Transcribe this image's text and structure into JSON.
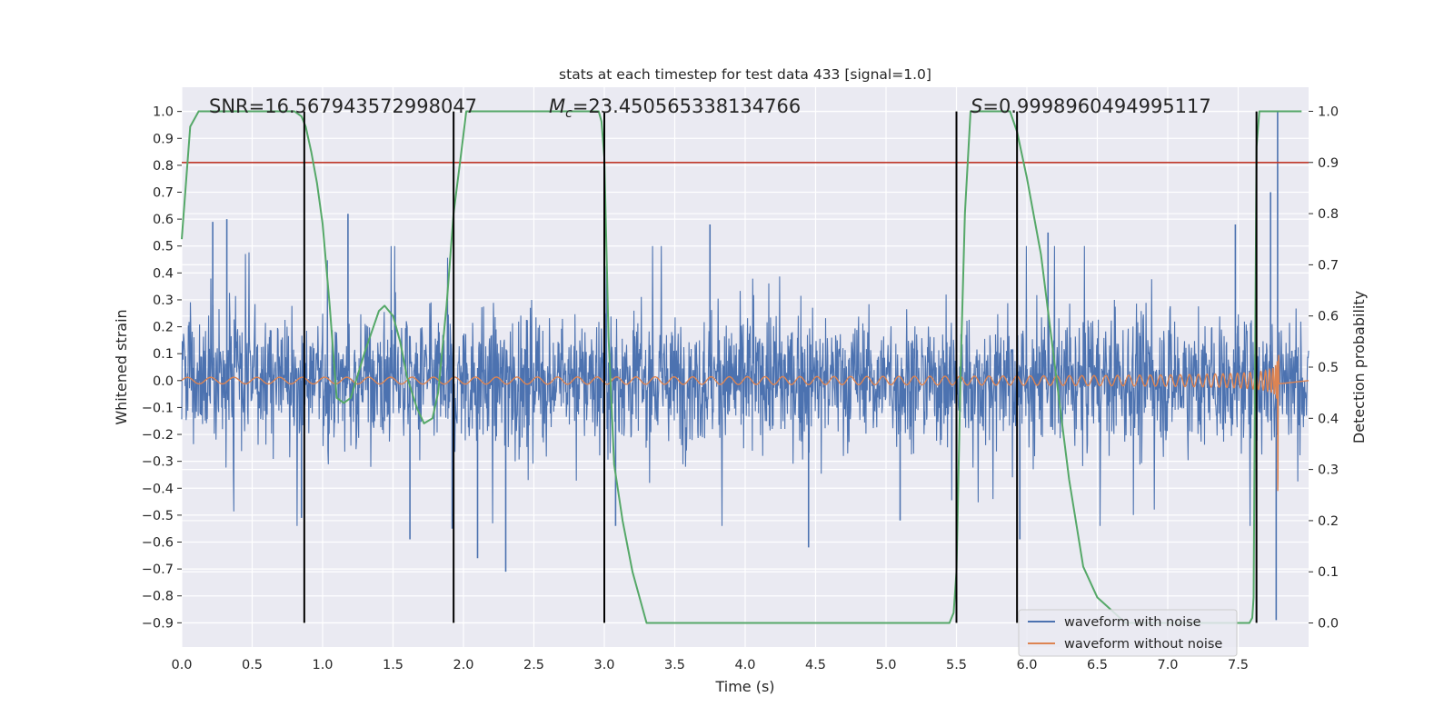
{
  "chart_data": {
    "type": "line",
    "title": "stats at each timestep for test data 433 [signal=1.0]",
    "xlabel": "Time (s)",
    "ylabel": "Whitened strain",
    "y2label": "Detection probability",
    "xlim": [
      0.0,
      8.0
    ],
    "ylim": [
      -0.99,
      1.09
    ],
    "y2lim": [
      -0.047,
      1.047
    ],
    "xticks": [
      "0.0",
      "0.5",
      "1.0",
      "1.5",
      "2.0",
      "2.5",
      "3.0",
      "3.5",
      "4.0",
      "4.5",
      "5.0",
      "5.5",
      "6.0",
      "6.5",
      "7.0",
      "7.5"
    ],
    "xtick_values": [
      0.0,
      0.5,
      1.0,
      1.5,
      2.0,
      2.5,
      3.0,
      3.5,
      4.0,
      4.5,
      5.0,
      5.5,
      6.0,
      6.5,
      7.0,
      7.5
    ],
    "yticks": [
      "1.0",
      "0.9",
      "0.8",
      "0.7",
      "0.6",
      "0.5",
      "0.4",
      "0.3",
      "0.2",
      "0.1",
      "0.0",
      "−0.1",
      "−0.2",
      "−0.3",
      "−0.4",
      "−0.5",
      "−0.6",
      "−0.7",
      "−0.8",
      "−0.9"
    ],
    "ytick_values": [
      1.0,
      0.9,
      0.8,
      0.7,
      0.6,
      0.5,
      0.4,
      0.3,
      0.2,
      0.1,
      0.0,
      -0.1,
      -0.2,
      -0.3,
      -0.4,
      -0.5,
      -0.6,
      -0.7,
      -0.8,
      -0.9
    ],
    "y2ticks": [
      "1.0",
      "0.9",
      "0.8",
      "0.7",
      "0.6",
      "0.5",
      "0.4",
      "0.3",
      "0.2",
      "0.1",
      "0.0"
    ],
    "y2tick_values": [
      1.0,
      0.9,
      0.8,
      0.7,
      0.6,
      0.5,
      0.4,
      0.3,
      0.2,
      0.1,
      0.0
    ],
    "annotations": {
      "snr": "SNR=16.567943572998047",
      "mc_symbol": "M",
      "mc_sub": "c",
      "mc_value": "=23.450565338134766",
      "s_symbol": "S",
      "s_value": "=0.9998960494995117"
    },
    "threshold": {
      "axis": "right",
      "value": 0.9,
      "color": "#c0392b"
    },
    "vlines": {
      "x": [
        0.87,
        1.93,
        3.0,
        5.5,
        5.93,
        7.63
      ],
      "ymin": -0.9,
      "ymax": 1.0,
      "color": "#000000"
    },
    "series": [
      {
        "name": "waveform with noise",
        "color": "#4c72b0",
        "kind": "noise",
        "typical_std": 0.12,
        "peak_range": [
          -0.9,
          1.0
        ],
        "extremes": [
          {
            "x": 0.22,
            "y": 0.59
          },
          {
            "x": 0.32,
            "y": 0.6
          },
          {
            "x": 0.85,
            "y": -0.51
          },
          {
            "x": 1.18,
            "y": 0.62
          },
          {
            "x": 1.62,
            "y": -0.59
          },
          {
            "x": 1.92,
            "y": -0.55
          },
          {
            "x": 2.1,
            "y": -0.66
          },
          {
            "x": 2.3,
            "y": -0.71
          },
          {
            "x": 3.08,
            "y": -0.54
          },
          {
            "x": 3.75,
            "y": 0.58
          },
          {
            "x": 4.45,
            "y": -0.62
          },
          {
            "x": 5.1,
            "y": -0.52
          },
          {
            "x": 5.95,
            "y": -0.59
          },
          {
            "x": 6.15,
            "y": 0.55
          },
          {
            "x": 7.48,
            "y": 0.58
          },
          {
            "x": 7.73,
            "y": 0.7
          },
          {
            "x": 7.77,
            "y": -0.89
          },
          {
            "x": 7.78,
            "y": 1.0
          }
        ]
      },
      {
        "name": "waveform without noise",
        "color": "#dd8452",
        "kind": "chirp",
        "merger_time": 7.78,
        "amplitude_start": 0.003,
        "amplitude_peak": 0.78,
        "frequency_start_hz": 6
      },
      {
        "name": "detection probability",
        "color": "#55a868",
        "axis": "right",
        "x": [
          0.0,
          0.06,
          0.12,
          0.2,
          0.3,
          0.45,
          0.6,
          0.7,
          0.8,
          0.85,
          0.88,
          0.92,
          0.96,
          1.0,
          1.05,
          1.1,
          1.15,
          1.2,
          1.3,
          1.4,
          1.44,
          1.5,
          1.55,
          1.6,
          1.67,
          1.72,
          1.78,
          1.82,
          1.88,
          1.93,
          1.98,
          2.02,
          2.08,
          2.15,
          2.3,
          2.5,
          2.7,
          2.9,
          2.96,
          2.98,
          3.0,
          3.03,
          3.07,
          3.13,
          3.2,
          3.3,
          3.5,
          4.0,
          4.5,
          5.0,
          5.2,
          5.35,
          5.45,
          5.48,
          5.5,
          5.53,
          5.56,
          5.6,
          5.7,
          5.8,
          5.88,
          5.93,
          6.0,
          6.1,
          6.2,
          6.3,
          6.4,
          6.5,
          6.7,
          6.9,
          7.1,
          7.3,
          7.5,
          7.58,
          7.6,
          7.61,
          7.62,
          7.63,
          7.65,
          7.68,
          7.72,
          7.8,
          7.95
        ],
        "y": [
          0.75,
          0.97,
          1.0,
          1.0,
          1.0,
          1.0,
          1.0,
          1.0,
          1.0,
          0.99,
          0.97,
          0.92,
          0.86,
          0.78,
          0.62,
          0.44,
          0.43,
          0.44,
          0.53,
          0.61,
          0.62,
          0.6,
          0.55,
          0.48,
          0.42,
          0.39,
          0.4,
          0.45,
          0.62,
          0.8,
          0.91,
          1.0,
          1.0,
          1.0,
          1.0,
          1.0,
          1.0,
          1.0,
          1.0,
          0.98,
          0.91,
          0.56,
          0.31,
          0.2,
          0.1,
          0.0,
          0.0,
          0.0,
          0.0,
          0.0,
          0.0,
          0.0,
          0.0,
          0.02,
          0.1,
          0.5,
          0.8,
          1.0,
          1.0,
          1.0,
          1.0,
          0.96,
          0.87,
          0.72,
          0.5,
          0.28,
          0.11,
          0.05,
          0.0,
          0.0,
          0.0,
          0.0,
          0.0,
          0.0,
          0.01,
          0.05,
          0.5,
          0.93,
          1.0,
          1.0,
          1.0,
          1.0,
          1.0
        ]
      }
    ],
    "legend": {
      "placement": "lower-right",
      "entries": [
        "waveform with noise",
        "waveform without noise"
      ]
    },
    "colors": {
      "background": "#eaeaf2",
      "grid": "#ffffff"
    }
  }
}
